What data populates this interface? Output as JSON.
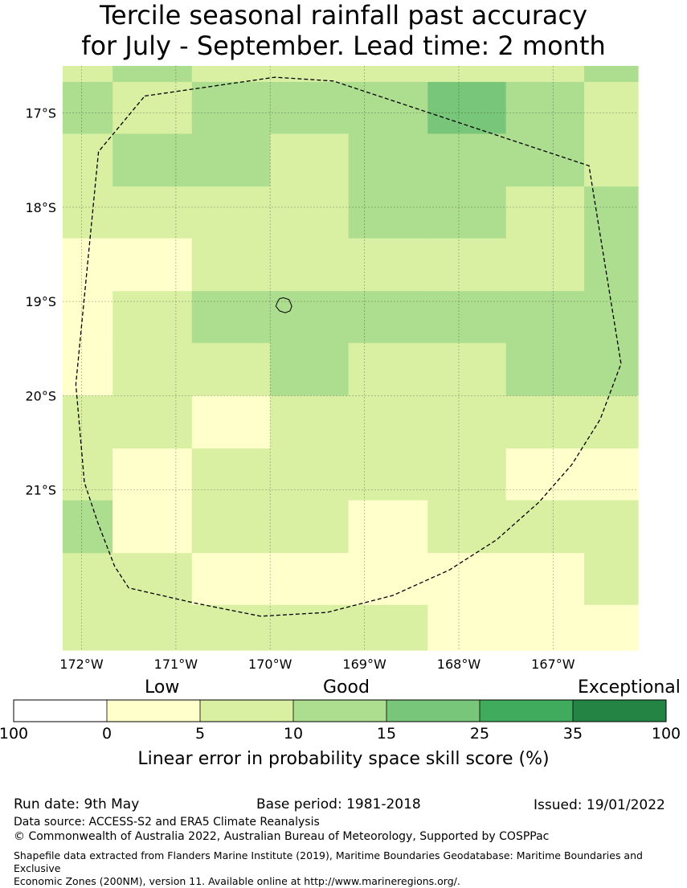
{
  "title": {
    "line1": "Tercile seasonal rainfall past accuracy",
    "line2": "for July - September. Lead time: 2 month"
  },
  "chart_data": {
    "type": "heatmap",
    "title": "Tercile seasonal rainfall past accuracy for July - September. Lead time: 2 month",
    "x_tick_labels": [
      "172°W",
      "171°W",
      "170°W",
      "169°W",
      "168°W",
      "167°W"
    ],
    "x_ticks": [
      -172,
      -171,
      -170,
      -169,
      -168,
      -167
    ],
    "y_tick_labels": [
      "17°S",
      "18°S",
      "19°S",
      "20°S",
      "21°S"
    ],
    "y_ticks": [
      -17,
      -18,
      -19,
      -20,
      -21
    ],
    "xlim": [
      -172.2,
      -166.1
    ],
    "ylim": [
      -22.7,
      -16.5
    ],
    "grid": true,
    "cell_lon_edges": [
      -172.2,
      -171.67,
      -170.83,
      -170.0,
      -169.17,
      -168.33,
      -167.5,
      -166.67,
      -166.1
    ],
    "cell_lat_edges": [
      -16.5,
      -16.67,
      -17.22,
      -17.78,
      -18.33,
      -18.89,
      -19.44,
      -20.0,
      -20.56,
      -21.11,
      -21.67,
      -22.22,
      -22.7
    ],
    "category_grid": [
      [
        2,
        3,
        2,
        2,
        2,
        2,
        2,
        3
      ],
      [
        3,
        2,
        3,
        3,
        3,
        4,
        3,
        2
      ],
      [
        2,
        3,
        3,
        2,
        3,
        3,
        3,
        2
      ],
      [
        2,
        2,
        2,
        2,
        3,
        3,
        2,
        3
      ],
      [
        1,
        1,
        2,
        2,
        2,
        2,
        2,
        3
      ],
      [
        1,
        2,
        3,
        3,
        3,
        3,
        3,
        3
      ],
      [
        1,
        2,
        2,
        3,
        2,
        2,
        3,
        3
      ],
      [
        2,
        2,
        1,
        2,
        2,
        2,
        2,
        2
      ],
      [
        2,
        1,
        2,
        2,
        2,
        2,
        1,
        1
      ],
      [
        3,
        1,
        2,
        2,
        1,
        2,
        2,
        2
      ],
      [
        2,
        2,
        1,
        1,
        1,
        1,
        1,
        2
      ],
      [
        2,
        2,
        2,
        2,
        2,
        1,
        1,
        1
      ]
    ],
    "colorbar": {
      "boundaries": [
        "100",
        "0",
        "5",
        "10",
        "15",
        "25",
        "35",
        "100"
      ],
      "colors": [
        "#ffffff",
        "#ffffcc",
        "#d9f0a3",
        "#addd8e",
        "#78c679",
        "#41ab5d",
        "#238443"
      ],
      "category_labels": [
        "Low",
        "Good",
        "Exceptional"
      ],
      "label": "Linear error in probability space skill score (%)"
    },
    "eez_boundary": "dashed",
    "island_outline": "Niue"
  },
  "footer": {
    "run_date": "Run date: 9th May",
    "base_period": "Base period: 1981-2018",
    "issued": "Issued: 19/01/2022",
    "data_source": "Data source: ACCESS-S2 and ERA5 Climate Reanalysis",
    "copyright": "© Commonwealth of Australia 2022, Australian Bureau of Meteorology, Supported by COSPPac",
    "shapefile_line1": "Shapefile data extracted from Flanders Marine Institute (2019), Maritime Boundaries Geodatabase: Maritime Boundaries and Exclusive",
    "shapefile_line2": "Economic Zones (200NM), version 11. Available online at http://www.marineregions.org/."
  }
}
